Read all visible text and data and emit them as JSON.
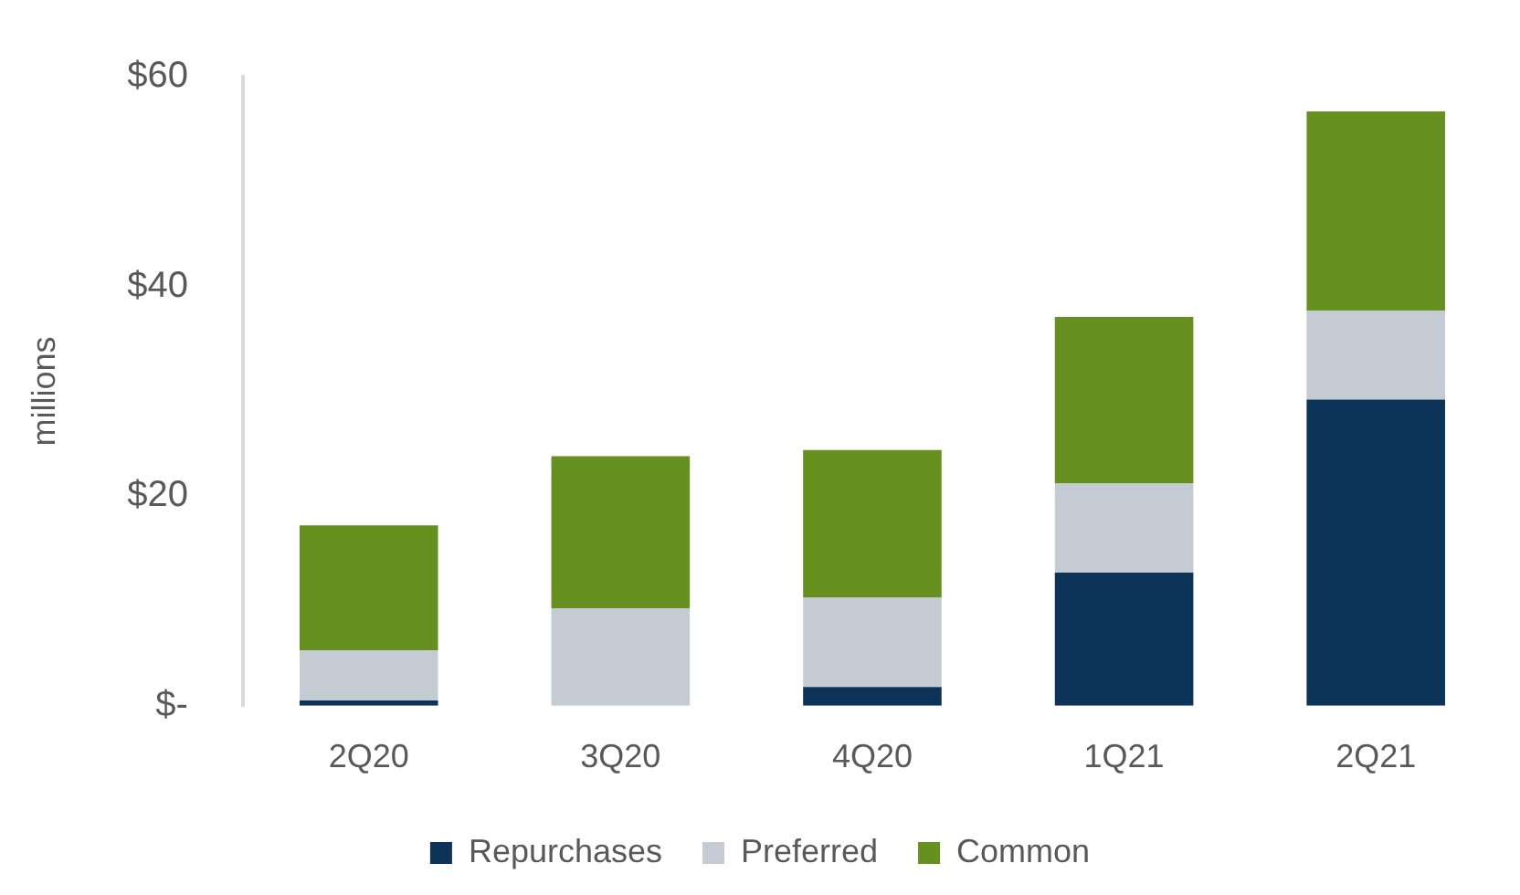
{
  "chart_data": {
    "type": "bar",
    "stacked": true,
    "ylabel": "millions",
    "categories": [
      "2Q20",
      "3Q20",
      "4Q20",
      "1Q21",
      "2Q21"
    ],
    "series": [
      {
        "name": "Repurchases",
        "color": "#0e3358",
        "values": [
          0.5,
          0,
          1.8,
          12.7,
          29.2
        ]
      },
      {
        "name": "Preferred",
        "color": "#c5cbd3",
        "values": [
          4.8,
          9.3,
          8.5,
          8.5,
          8.5
        ]
      },
      {
        "name": "Common",
        "color": "#66901f",
        "values": [
          11.9,
          14.5,
          14.1,
          15.9,
          19.0
        ]
      }
    ],
    "ylim": [
      0,
      60
    ],
    "yticks": [
      {
        "value": 0,
        "label": "$-"
      },
      {
        "value": 20,
        "label": "$20"
      },
      {
        "value": 40,
        "label": "$40"
      },
      {
        "value": 60,
        "label": "$60"
      }
    ],
    "grid": false,
    "legend": "bottom"
  }
}
